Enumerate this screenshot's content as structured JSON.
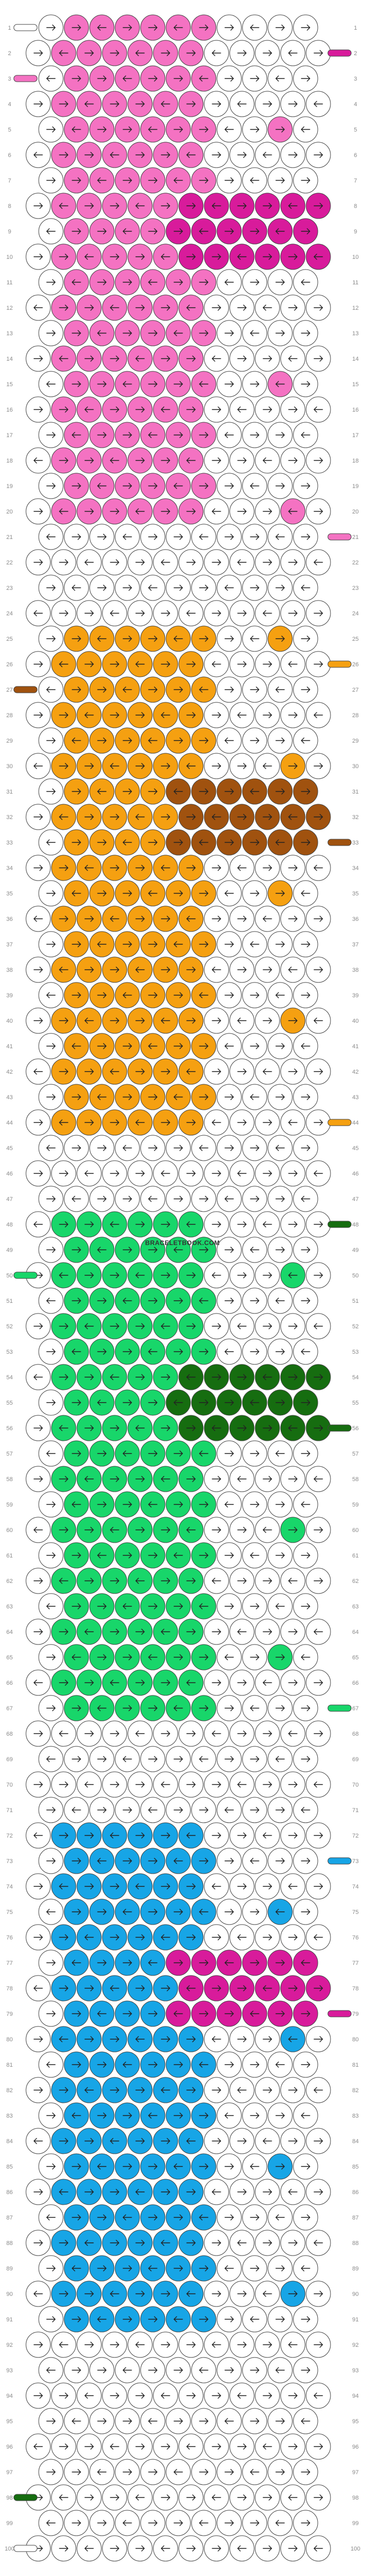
{
  "watermark": "BRACELETBOOK.COM",
  "colors": {
    "white": "#ffffff",
    "pink": "#f472c2",
    "magenta": "#d81b9b",
    "brown": "#a0520f",
    "orange": "#f5a011",
    "green": "#18d66a",
    "darkgreen": "#166d10",
    "blue": "#17a5e6",
    "stroke": "#444444"
  },
  "row_count": 100,
  "row_labels": [
    "1",
    "2",
    "3",
    "4",
    "5",
    "6",
    "7",
    "8",
    "9",
    "10",
    "11",
    "12",
    "13",
    "14",
    "15",
    "16",
    "17",
    "18",
    "19",
    "20",
    "21",
    "22",
    "23",
    "24",
    "25",
    "26",
    "27",
    "28",
    "29",
    "30",
    "31",
    "32",
    "33",
    "34",
    "35",
    "36",
    "37",
    "38",
    "39",
    "40",
    "41",
    "42",
    "43",
    "44",
    "45",
    "46",
    "47",
    "48",
    "49",
    "50",
    "51",
    "52",
    "53",
    "54",
    "55",
    "56",
    "57",
    "58",
    "59",
    "60",
    "61",
    "62",
    "63",
    "64",
    "65",
    "66",
    "67",
    "68",
    "69",
    "70",
    "71",
    "72",
    "73",
    "74",
    "75",
    "76",
    "77",
    "78",
    "79",
    "80",
    "81",
    "82",
    "83",
    "84",
    "85",
    "86",
    "87",
    "88",
    "89",
    "90",
    "91",
    "92",
    "93",
    "94",
    "95",
    "96",
    "97",
    "98",
    "99",
    "100"
  ],
  "strand_markers_left": [
    {
      "row": 1,
      "color": "white"
    },
    {
      "row": 3,
      "color": "pink"
    },
    {
      "row": 27,
      "color": "brown"
    },
    {
      "row": 50,
      "color": "green"
    },
    {
      "row": 98,
      "color": "darkgreen"
    },
    {
      "row": 100,
      "color": "white"
    }
  ],
  "strand_markers_right": [
    {
      "row": 2,
      "color": "magenta"
    },
    {
      "row": 21,
      "color": "pink"
    },
    {
      "row": 26,
      "color": "orange"
    },
    {
      "row": 33,
      "color": "brown"
    },
    {
      "row": 44,
      "color": "orange"
    },
    {
      "row": 48,
      "color": "darkgreen"
    },
    {
      "row": 56,
      "color": "darkgreen"
    },
    {
      "row": 67,
      "color": "green"
    },
    {
      "row": 73,
      "color": "blue"
    },
    {
      "row": 79,
      "color": "magenta"
    }
  ],
  "color_bands": [
    {
      "from": 1,
      "to": 20,
      "fill": "pink",
      "accent": "magenta",
      "accent_rows": [
        8,
        9,
        10
      ]
    },
    {
      "from": 25,
      "to": 44,
      "fill": "orange",
      "accent": "brown",
      "accent_rows": [
        31,
        32,
        33
      ]
    },
    {
      "from": 48,
      "to": 67,
      "fill": "green",
      "accent": "darkgreen",
      "accent_rows": [
        54,
        55,
        56
      ]
    },
    {
      "from": 72,
      "to": 91,
      "fill": "blue",
      "accent": "magenta",
      "accent_rows": [
        77,
        78,
        79
      ]
    }
  ]
}
